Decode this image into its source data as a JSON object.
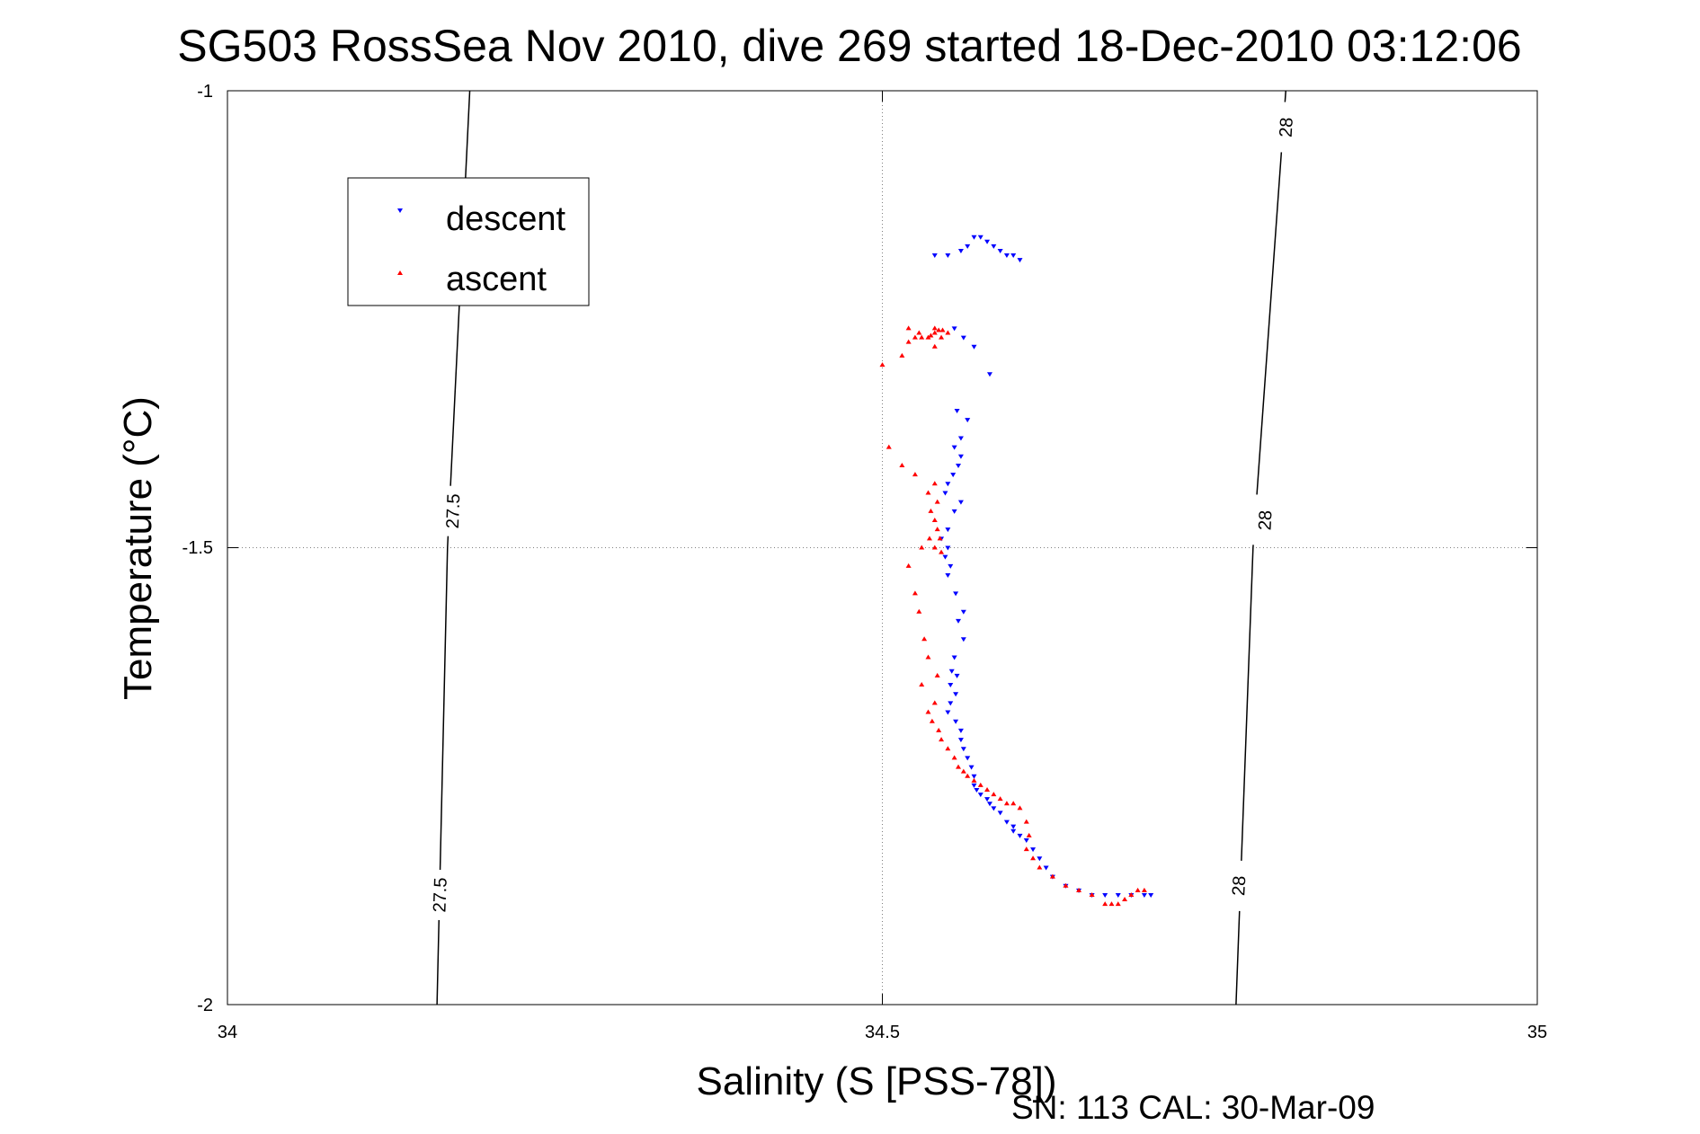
{
  "chart_data": {
    "type": "scatter",
    "title": "SG503 RossSea Nov 2010, dive 269 started 18-Dec-2010 03:12:06",
    "xlabel": "Salinity (S [PSS-78])",
    "ylabel": "Temperature (°C)",
    "xlim": [
      34,
      35
    ],
    "ylim": [
      -2,
      -1
    ],
    "xticks": [
      "34",
      "34.5",
      "35"
    ],
    "yticks": [
      "-1",
      "-1.5",
      "-2"
    ],
    "grid": true,
    "legend_position": "top-left",
    "footer_text": "SN: 113  CAL: 30-Mar-09",
    "colors": {
      "descent": "#0000ff",
      "ascent": "#ff0000",
      "contour": "#000000"
    },
    "contours": [
      {
        "label": "27.5",
        "points": [
          [
            34.16,
            -2.0
          ],
          [
            34.168,
            -1.5
          ],
          [
            34.185,
            -1.0
          ]
        ],
        "labels_at": [
          [
            34.162,
            -1.88
          ],
          [
            34.172,
            -1.46
          ]
        ]
      },
      {
        "label": "28",
        "points": [
          [
            34.77,
            -2.0
          ],
          [
            34.783,
            -1.5
          ],
          [
            34.808,
            -1.0
          ]
        ],
        "labels_at": [
          [
            34.772,
            -1.87
          ],
          [
            34.792,
            -1.47
          ],
          [
            34.808,
            -1.04
          ]
        ]
      }
    ],
    "series": [
      {
        "name": "descent",
        "marker": "triangle-down",
        "points": [
          [
            34.54,
            -1.18
          ],
          [
            34.55,
            -1.18
          ],
          [
            34.56,
            -1.175
          ],
          [
            34.565,
            -1.17
          ],
          [
            34.57,
            -1.16
          ],
          [
            34.575,
            -1.16
          ],
          [
            34.58,
            -1.165
          ],
          [
            34.585,
            -1.17
          ],
          [
            34.59,
            -1.175
          ],
          [
            34.595,
            -1.18
          ],
          [
            34.6,
            -1.18
          ],
          [
            34.605,
            -1.185
          ],
          [
            34.57,
            -1.28
          ],
          [
            34.555,
            -1.26
          ],
          [
            34.562,
            -1.27
          ],
          [
            34.582,
            -1.31
          ],
          [
            34.557,
            -1.35
          ],
          [
            34.565,
            -1.36
          ],
          [
            34.56,
            -1.38
          ],
          [
            34.555,
            -1.39
          ],
          [
            34.56,
            -1.4
          ],
          [
            34.558,
            -1.41
          ],
          [
            34.554,
            -1.42
          ],
          [
            34.55,
            -1.43
          ],
          [
            34.548,
            -1.44
          ],
          [
            34.56,
            -1.45
          ],
          [
            34.555,
            -1.46
          ],
          [
            34.55,
            -1.48
          ],
          [
            34.545,
            -1.49
          ],
          [
            34.55,
            -1.5
          ],
          [
            34.548,
            -1.51
          ],
          [
            34.552,
            -1.52
          ],
          [
            34.55,
            -1.53
          ],
          [
            34.556,
            -1.55
          ],
          [
            34.562,
            -1.57
          ],
          [
            34.558,
            -1.58
          ],
          [
            34.562,
            -1.6
          ],
          [
            34.555,
            -1.62
          ],
          [
            34.553,
            -1.635
          ],
          [
            34.557,
            -1.64
          ],
          [
            34.552,
            -1.65
          ],
          [
            34.556,
            -1.66
          ],
          [
            34.552,
            -1.67
          ],
          [
            34.55,
            -1.68
          ],
          [
            34.556,
            -1.69
          ],
          [
            34.56,
            -1.7
          ],
          [
            34.56,
            -1.71
          ],
          [
            34.562,
            -1.72
          ],
          [
            34.565,
            -1.73
          ],
          [
            34.568,
            -1.74
          ],
          [
            34.57,
            -1.75
          ],
          [
            34.57,
            -1.76
          ],
          [
            34.572,
            -1.765
          ],
          [
            34.575,
            -1.77
          ],
          [
            34.58,
            -1.775
          ],
          [
            34.582,
            -1.78
          ],
          [
            34.585,
            -1.785
          ],
          [
            34.59,
            -1.79
          ],
          [
            34.595,
            -1.8
          ],
          [
            34.6,
            -1.805
          ],
          [
            34.6,
            -1.81
          ],
          [
            34.605,
            -1.815
          ],
          [
            34.61,
            -1.82
          ],
          [
            34.615,
            -1.83
          ],
          [
            34.62,
            -1.84
          ],
          [
            34.625,
            -1.85
          ],
          [
            34.63,
            -1.86
          ],
          [
            34.64,
            -1.87
          ],
          [
            34.65,
            -1.875
          ],
          [
            34.66,
            -1.88
          ],
          [
            34.67,
            -1.88
          ],
          [
            34.68,
            -1.88
          ],
          [
            34.69,
            -1.88
          ],
          [
            34.7,
            -1.88
          ],
          [
            34.705,
            -1.88
          ]
        ]
      },
      {
        "name": "ascent",
        "marker": "triangle-up",
        "points": [
          [
            34.52,
            -1.26
          ],
          [
            34.525,
            -1.27
          ],
          [
            34.53,
            -1.27
          ],
          [
            34.535,
            -1.27
          ],
          [
            34.54,
            -1.26
          ],
          [
            34.545,
            -1.27
          ],
          [
            34.528,
            -1.265
          ],
          [
            34.537,
            -1.268
          ],
          [
            34.54,
            -1.265
          ],
          [
            34.543,
            -1.262
          ],
          [
            34.546,
            -1.262
          ],
          [
            34.55,
            -1.265
          ],
          [
            34.54,
            -1.28
          ],
          [
            34.5,
            -1.3
          ],
          [
            34.515,
            -1.29
          ],
          [
            34.52,
            -1.275
          ],
          [
            34.505,
            -1.39
          ],
          [
            34.515,
            -1.41
          ],
          [
            34.525,
            -1.42
          ],
          [
            34.535,
            -1.44
          ],
          [
            34.54,
            -1.43
          ],
          [
            34.542,
            -1.45
          ],
          [
            34.537,
            -1.46
          ],
          [
            34.54,
            -1.47
          ],
          [
            34.542,
            -1.48
          ],
          [
            34.536,
            -1.49
          ],
          [
            34.544,
            -1.49
          ],
          [
            34.54,
            -1.5
          ],
          [
            34.545,
            -1.505
          ],
          [
            34.53,
            -1.5
          ],
          [
            34.52,
            -1.52
          ],
          [
            34.525,
            -1.55
          ],
          [
            34.528,
            -1.57
          ],
          [
            34.532,
            -1.6
          ],
          [
            34.535,
            -1.62
          ],
          [
            34.53,
            -1.65
          ],
          [
            34.542,
            -1.64
          ],
          [
            34.54,
            -1.67
          ],
          [
            34.535,
            -1.68
          ],
          [
            34.538,
            -1.69
          ],
          [
            34.543,
            -1.7
          ],
          [
            34.545,
            -1.71
          ],
          [
            34.55,
            -1.72
          ],
          [
            34.555,
            -1.73
          ],
          [
            34.558,
            -1.74
          ],
          [
            34.562,
            -1.745
          ],
          [
            34.565,
            -1.75
          ],
          [
            34.57,
            -1.755
          ],
          [
            34.575,
            -1.76
          ],
          [
            34.58,
            -1.765
          ],
          [
            34.585,
            -1.77
          ],
          [
            34.59,
            -1.775
          ],
          [
            34.595,
            -1.78
          ],
          [
            34.6,
            -1.78
          ],
          [
            34.605,
            -1.785
          ],
          [
            34.61,
            -1.8
          ],
          [
            34.612,
            -1.815
          ],
          [
            34.61,
            -1.83
          ],
          [
            34.615,
            -1.84
          ],
          [
            34.62,
            -1.85
          ],
          [
            34.63,
            -1.86
          ],
          [
            34.64,
            -1.87
          ],
          [
            34.65,
            -1.875
          ],
          [
            34.66,
            -1.88
          ],
          [
            34.67,
            -1.89
          ],
          [
            34.675,
            -1.89
          ],
          [
            34.68,
            -1.89
          ],
          [
            34.685,
            -1.885
          ],
          [
            34.69,
            -1.88
          ],
          [
            34.695,
            -1.875
          ],
          [
            34.7,
            -1.875
          ]
        ]
      }
    ]
  }
}
